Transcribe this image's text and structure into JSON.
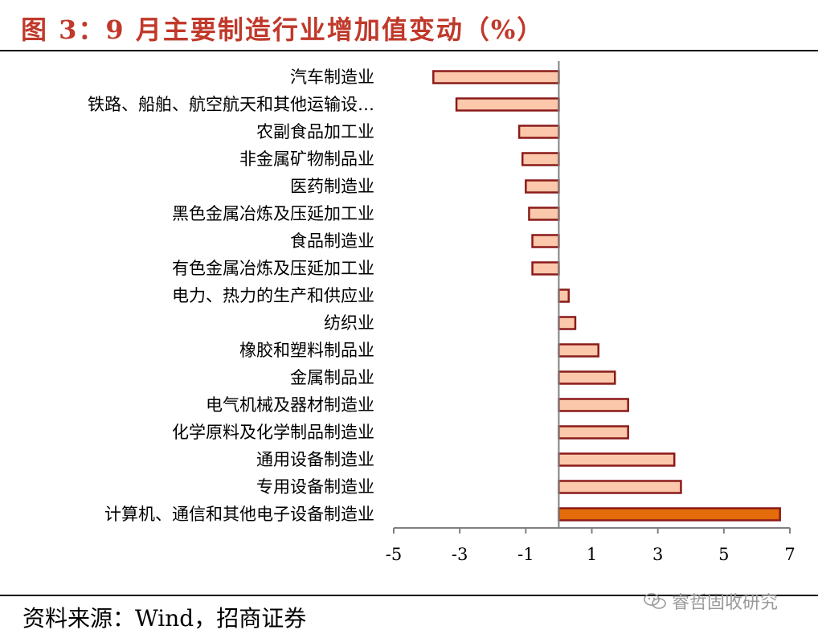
{
  "title": "图 3：9 月主要制造行业增加值变动（%）",
  "source": "资料来源：Wind，招商证券",
  "watermark": "睿哲固收研究",
  "colors": {
    "title": "#c0392b",
    "bar_fill": "#fbc8ac",
    "bar_highlight": "#e46c0a",
    "bar_stroke": "#8b1a1a"
  },
  "chart_data": {
    "type": "bar",
    "orientation": "horizontal",
    "categories": [
      "汽车制造业",
      "铁路、船舶、航空航天和其他运输设…",
      "农副食品加工业",
      "非金属矿物制品业",
      "医药制造业",
      "黑色金属冶炼及压延加工业",
      "食品制造业",
      "有色金属冶炼及压延加工业",
      "电力、热力的生产和供应业",
      "纺织业",
      "橡胶和塑料制品业",
      "金属制品业",
      "电气机械及器材制造业",
      "化学原料及化学制品制造业",
      "通用设备制造业",
      "专用设备制造业",
      "计算机、通信和其他电子设备制造业"
    ],
    "values": [
      -3.8,
      -3.1,
      -1.2,
      -1.1,
      -1.0,
      -0.9,
      -0.8,
      -0.8,
      0.3,
      0.5,
      1.2,
      1.7,
      2.1,
      2.1,
      3.5,
      3.7,
      6.7
    ],
    "highlight_index": 16,
    "xlim": [
      -5,
      7
    ],
    "xticks": [
      -5,
      -3,
      -1,
      1,
      3,
      5,
      7
    ],
    "xtick_labels": [
      "-5",
      "-3",
      "-1",
      "1",
      "3",
      "5",
      "7"
    ],
    "grid": false,
    "legend": "none"
  }
}
